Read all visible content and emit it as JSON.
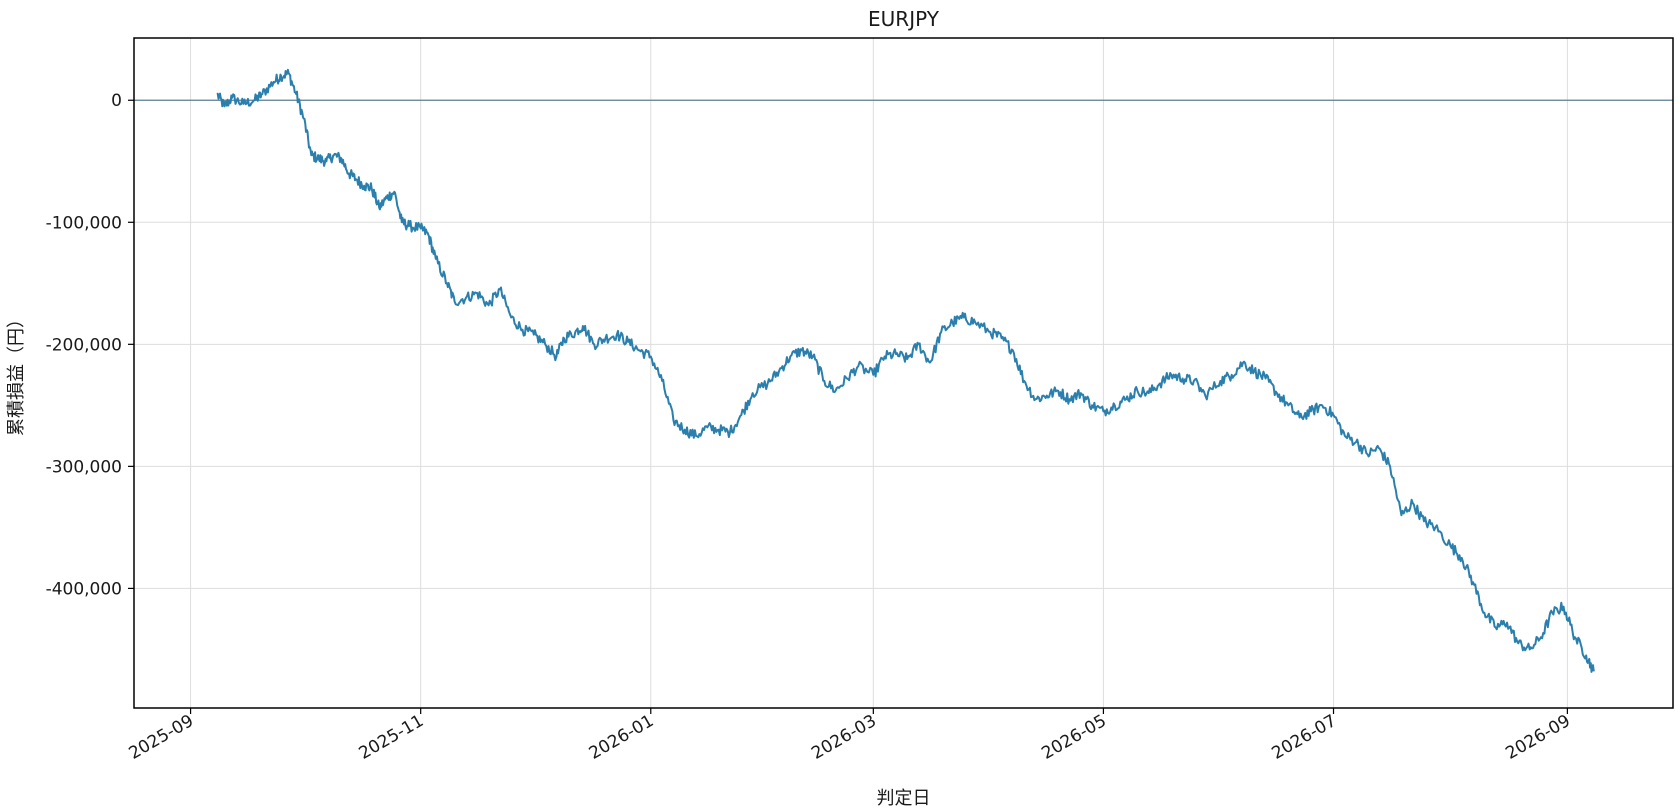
{
  "chart_data": {
    "type": "line",
    "title": "EURJPY",
    "xlabel": "判定日",
    "ylabel": "累積損益（円）",
    "x_type": "date",
    "xlim": [
      "2025-08-17",
      "2026-09-29"
    ],
    "ylim": [
      -498000,
      51000
    ],
    "grid": true,
    "legend": "none",
    "zero_line": 0,
    "colors": {
      "line": "#2a7fad",
      "zero_line": "#5f7f94",
      "grid": "#dddddd",
      "frame": "#000000"
    },
    "x_ticks": [
      {
        "value": "2025-09-01",
        "label": "2025-09"
      },
      {
        "value": "2025-11-01",
        "label": "2025-11"
      },
      {
        "value": "2026-01-01",
        "label": "2026-01"
      },
      {
        "value": "2026-03-01",
        "label": "2026-03"
      },
      {
        "value": "2026-05-01",
        "label": "2026-05"
      },
      {
        "value": "2026-07-01",
        "label": "2026-07"
      },
      {
        "value": "2026-09-01",
        "label": "2026-09"
      }
    ],
    "y_ticks": [
      {
        "value": 0,
        "label": "0"
      },
      {
        "value": -100000,
        "label": "-100,000"
      },
      {
        "value": -200000,
        "label": "-200,000"
      },
      {
        "value": -300000,
        "label": "-300,000"
      },
      {
        "value": -400000,
        "label": "-400,000"
      }
    ],
    "series": [
      {
        "x": [
          "2025-09-08",
          "2025-09-10",
          "2025-09-12",
          "2025-09-15",
          "2025-09-18",
          "2025-09-20",
          "2025-09-23",
          "2025-09-25",
          "2025-09-27",
          "2025-09-29",
          "2025-10-01",
          "2025-10-03",
          "2025-10-05",
          "2025-10-07",
          "2025-10-09",
          "2025-10-11",
          "2025-10-13",
          "2025-10-15",
          "2025-10-17",
          "2025-10-19",
          "2025-10-21",
          "2025-10-23",
          "2025-10-25",
          "2025-10-27",
          "2025-10-29",
          "2025-11-01",
          "2025-11-03",
          "2025-11-05",
          "2025-11-08",
          "2025-11-10",
          "2025-11-13",
          "2025-11-16",
          "2025-11-19",
          "2025-11-22",
          "2025-11-25",
          "2025-11-28",
          "2025-12-01",
          "2025-12-04",
          "2025-12-07",
          "2025-12-09",
          "2025-12-12",
          "2025-12-14",
          "2025-12-17",
          "2025-12-20",
          "2025-12-23",
          "2025-12-26",
          "2025-12-29",
          "2026-01-01",
          "2026-01-04",
          "2026-01-07",
          "2026-01-10",
          "2026-01-13",
          "2026-01-16",
          "2026-01-19",
          "2026-01-22",
          "2026-01-25",
          "2026-01-28",
          "2026-02-01",
          "2026-02-04",
          "2026-02-07",
          "2026-02-10",
          "2026-02-13",
          "2026-02-16",
          "2026-02-19",
          "2026-02-22",
          "2026-02-25",
          "2026-03-01",
          "2026-03-04",
          "2026-03-07",
          "2026-03-10",
          "2026-03-13",
          "2026-03-16",
          "2026-03-19",
          "2026-03-22",
          "2026-03-25",
          "2026-03-28",
          "2026-04-01",
          "2026-04-04",
          "2026-04-07",
          "2026-04-10",
          "2026-04-13",
          "2026-04-16",
          "2026-04-19",
          "2026-04-22",
          "2026-04-25",
          "2026-04-28",
          "2026-05-01",
          "2026-05-04",
          "2026-05-07",
          "2026-05-10",
          "2026-05-13",
          "2026-05-16",
          "2026-05-19",
          "2026-05-22",
          "2026-05-25",
          "2026-05-28",
          "2026-06-01",
          "2026-06-04",
          "2026-06-07",
          "2026-06-10",
          "2026-06-13",
          "2026-06-16",
          "2026-06-19",
          "2026-06-22",
          "2026-06-25",
          "2026-06-28",
          "2026-07-01",
          "2026-07-04",
          "2026-07-07",
          "2026-07-10",
          "2026-07-13",
          "2026-07-16",
          "2026-07-19",
          "2026-07-22",
          "2026-07-25",
          "2026-07-28",
          "2026-08-01",
          "2026-08-04",
          "2026-08-07",
          "2026-08-10",
          "2026-08-13",
          "2026-08-16",
          "2026-08-19",
          "2026-08-22",
          "2026-08-25",
          "2026-08-28",
          "2026-08-31",
          "2026-09-03",
          "2026-09-06",
          "2026-09-08"
        ],
        "values": [
          5000,
          -5000,
          2000,
          -3000,
          0,
          5000,
          15000,
          20000,
          22000,
          5000,
          -15000,
          -45000,
          -48000,
          -50000,
          -45000,
          -48000,
          -60000,
          -65000,
          -70000,
          -72000,
          -88000,
          -80000,
          -75000,
          -100000,
          -103000,
          -105000,
          -110000,
          -130000,
          -150000,
          -165000,
          -162000,
          -158000,
          -168000,
          -155000,
          -178000,
          -188000,
          -192000,
          -200000,
          -210000,
          -195000,
          -190000,
          -185000,
          -200000,
          -195000,
          -192000,
          -198000,
          -205000,
          -210000,
          -230000,
          -262000,
          -270000,
          -275000,
          -268000,
          -270000,
          -272000,
          -258000,
          -240000,
          -232000,
          -222000,
          -210000,
          -205000,
          -210000,
          -230000,
          -238000,
          -228000,
          -218000,
          -225000,
          -210000,
          -208000,
          -212000,
          -200000,
          -215000,
          -190000,
          -182000,
          -178000,
          -182000,
          -190000,
          -195000,
          -205000,
          -230000,
          -245000,
          -242000,
          -238000,
          -245000,
          -240000,
          -250000,
          -255000,
          -250000,
          -245000,
          -238000,
          -240000,
          -232000,
          -225000,
          -228000,
          -230000,
          -242000,
          -230000,
          -225000,
          -215000,
          -222000,
          -228000,
          -240000,
          -250000,
          -260000,
          -255000,
          -250000,
          -258000,
          -275000,
          -280000,
          -290000,
          -285000,
          -300000,
          -340000,
          -330000,
          -345000,
          -350000,
          -365000,
          -375000,
          -395000,
          -420000,
          -432000,
          -428000,
          -445000,
          -450000,
          -440000,
          -420000,
          -415000,
          -440000,
          -455000,
          -468000
        ]
      }
    ]
  }
}
